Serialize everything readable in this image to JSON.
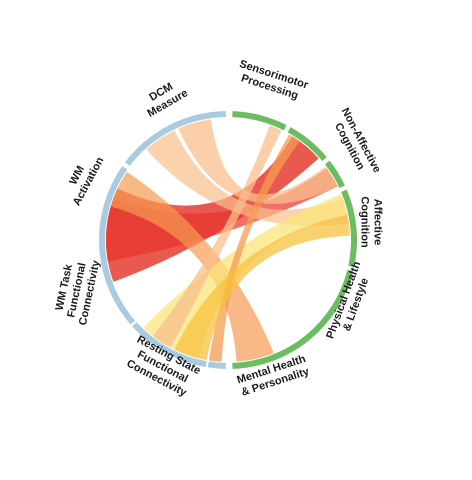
{
  "colors": {
    "measure_arc": "#a9cbe0",
    "outcome_arc": "#6cbd62",
    "red": "#e5342a",
    "orange": "#f59b52",
    "peach": "#f8bf8c",
    "yellow": "#f9e67a",
    "gold": "#f8c13f"
  },
  "segments": [
    {
      "id": "dcm",
      "group": "measure",
      "label_lines": [
        "DCM",
        "Measure"
      ]
    },
    {
      "id": "wm_act",
      "group": "measure",
      "label_lines": [
        "WM",
        "Activation"
      ]
    },
    {
      "id": "wm_fc",
      "group": "measure",
      "label_lines": [
        "WM Task",
        "Functional",
        "Connectivity"
      ]
    },
    {
      "id": "rsfc",
      "group": "measure",
      "label_lines": [
        "Resting State",
        "Functional",
        "Connectivity"
      ]
    },
    {
      "id": "mental",
      "group": "outcome",
      "label_lines": [
        "Mental Health",
        "& Personality"
      ]
    },
    {
      "id": "physical",
      "group": "outcome",
      "label_lines": [
        "Physical Health",
        "& Lifestyle"
      ]
    },
    {
      "id": "affective",
      "group": "outcome",
      "label_lines": [
        "Affective",
        "Cognition"
      ]
    },
    {
      "id": "nonaff",
      "group": "outcome",
      "label_lines": [
        "Non-Affective",
        "Cognition"
      ]
    },
    {
      "id": "sensori",
      "group": "outcome",
      "label_lines": [
        "Sensorimotor",
        "Processing"
      ]
    }
  ],
  "ribbons": [
    {
      "from": "wm_act",
      "to": "nonaff",
      "color": "red",
      "opacity": 0.82
    },
    {
      "from": "wm_act",
      "to": "affective",
      "color": "red",
      "opacity": 0.7
    },
    {
      "from": "wm_act",
      "to": "mental",
      "color": "orange",
      "opacity": 0.7
    },
    {
      "from": "dcm",
      "to": "affective",
      "color": "peach",
      "opacity": 0.75
    },
    {
      "from": "dcm",
      "to": "physical",
      "color": "peach",
      "opacity": 0.7
    },
    {
      "from": "wm_fc",
      "to": "physical",
      "color": "yellow",
      "opacity": 0.75
    },
    {
      "from": "rsfc",
      "to": "sensori",
      "color": "peach",
      "opacity": 0.75
    },
    {
      "from": "rsfc",
      "to": "nonaff",
      "color": "orange",
      "opacity": 0.75
    },
    {
      "from": "rsfc",
      "to": "physical",
      "color": "gold",
      "opacity": 0.75
    }
  ]
}
